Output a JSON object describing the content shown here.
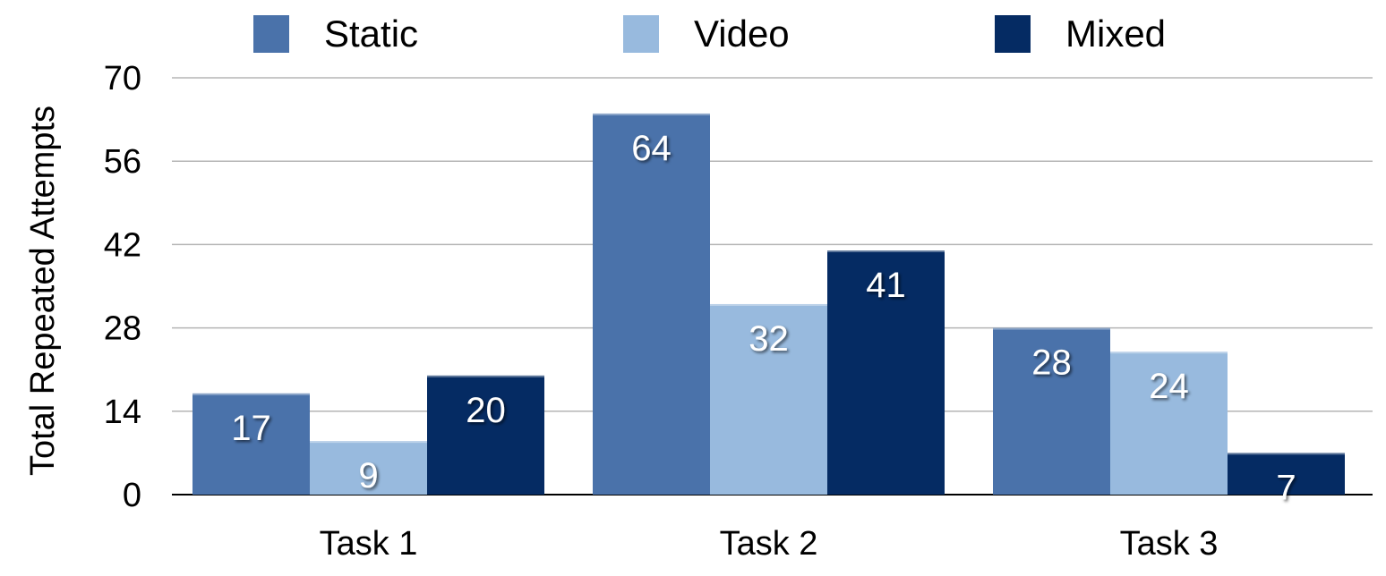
{
  "chart_data": {
    "type": "bar",
    "title": "",
    "xlabel": "",
    "ylabel": "Total Repeated Attempts",
    "ylim": [
      0,
      70
    ],
    "yticks": [
      0,
      14,
      28,
      42,
      56,
      70
    ],
    "grid": true,
    "legend_position": "top",
    "categories": [
      "Task 1",
      "Task 2",
      "Task 3"
    ],
    "series": [
      {
        "name": "Static",
        "color": "#4a72aa",
        "values": [
          17,
          64,
          28
        ]
      },
      {
        "name": "Video",
        "color": "#98bade",
        "values": [
          9,
          32,
          24
        ]
      },
      {
        "name": "Mixed",
        "color": "#052b63",
        "values": [
          20,
          41,
          7
        ]
      }
    ]
  }
}
